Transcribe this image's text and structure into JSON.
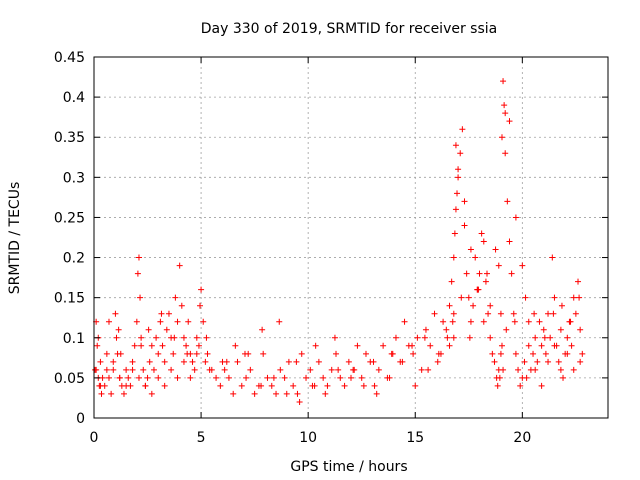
{
  "chart_data": {
    "type": "scatter",
    "title": "Day 330 of 2019, SRMTID for receiver ssia",
    "xlabel": "GPS time / hours",
    "ylabel": "SRMTID / TECUs",
    "xlim": [
      0,
      24
    ],
    "ylim": [
      0,
      0.45
    ],
    "xticks": [
      0,
      5,
      10,
      15,
      20
    ],
    "yticks": [
      0,
      0.05,
      0.1,
      0.15,
      0.2,
      0.25,
      0.3,
      0.35,
      0.4,
      0.45
    ],
    "xtick_labels": [
      "0",
      "5",
      "10",
      "15",
      "20"
    ],
    "ytick_labels": [
      "0",
      "0.05",
      "0.1",
      "0.15",
      "0.2",
      "0.25",
      "0.3",
      "0.35",
      "0.4",
      "0.45"
    ],
    "grid": true,
    "marker": "+",
    "color": "#ff0000",
    "series": [
      {
        "name": "SRMTID",
        "x": [
          0.05,
          0.1,
          0.15,
          0.2,
          0.25,
          0.3,
          0.35,
          0.4,
          0.5,
          0.6,
          0.7,
          0.8,
          0.9,
          1.0,
          1.05,
          1.1,
          1.15,
          1.2,
          1.3,
          1.4,
          1.5,
          1.6,
          1.7,
          1.8,
          1.9,
          2.0,
          2.05,
          2.1,
          2.15,
          2.2,
          2.3,
          2.4,
          2.5,
          2.6,
          2.7,
          2.8,
          2.9,
          3.0,
          3.1,
          3.2,
          3.3,
          3.4,
          3.5,
          3.6,
          3.7,
          3.8,
          3.9,
          4.0,
          4.1,
          4.2,
          4.3,
          4.4,
          4.5,
          4.6,
          4.7,
          4.8,
          4.9,
          5.0,
          5.1,
          5.2,
          5.3,
          5.5,
          5.7,
          5.9,
          6.1,
          6.3,
          6.5,
          6.7,
          6.9,
          7.1,
          7.3,
          7.5,
          7.7,
          7.9,
          8.1,
          8.3,
          8.5,
          8.7,
          8.9,
          9.1,
          9.3,
          9.5,
          9.7,
          9.9,
          10.1,
          10.3,
          10.5,
          10.7,
          10.9,
          11.1,
          11.3,
          11.5,
          11.7,
          11.9,
          12.1,
          12.3,
          12.5,
          12.7,
          12.9,
          13.1,
          13.3,
          13.5,
          13.7,
          13.9,
          14.1,
          14.3,
          14.5,
          14.7,
          14.9,
          15.1,
          15.3,
          15.5,
          15.7,
          15.9,
          16.1,
          16.3,
          16.5,
          16.6,
          16.7,
          16.8,
          16.85,
          16.9,
          16.95,
          17.0,
          17.1,
          17.2,
          17.3,
          17.4,
          17.5,
          17.6,
          17.7,
          17.8,
          17.9,
          18.0,
          18.1,
          18.2,
          18.3,
          18.4,
          18.5,
          18.6,
          18.7,
          18.8,
          18.85,
          18.9,
          18.95,
          19.0,
          19.05,
          19.1,
          19.15,
          19.2,
          19.3,
          19.4,
          19.5,
          19.6,
          19.7,
          19.8,
          19.9,
          20.0,
          20.1,
          20.2,
          20.3,
          20.4,
          20.5,
          20.6,
          20.7,
          20.8,
          20.9,
          21.0,
          21.1,
          21.2,
          21.3,
          21.4,
          21.5,
          21.6,
          21.7,
          21.8,
          21.9,
          22.0,
          22.1,
          22.2,
          22.3,
          22.4,
          22.5,
          22.6,
          22.7,
          22.8,
          0.1,
          0.3,
          0.6,
          0.9,
          1.2,
          1.5,
          1.8,
          2.1,
          2.4,
          2.7,
          3.0,
          3.3,
          3.6,
          3.9,
          4.2,
          4.5,
          4.8,
          5.4,
          6.0,
          6.6,
          7.2,
          7.8,
          8.4,
          9.0,
          9.6,
          10.2,
          10.8,
          11.4,
          12.0,
          12.6,
          13.2,
          13.8,
          14.4,
          15.0,
          15.6,
          16.2,
          16.6,
          16.75,
          16.8,
          16.9,
          17.0,
          17.3,
          17.6,
          17.9,
          18.2,
          18.5,
          18.9,
          19.0,
          19.05,
          19.1,
          19.2,
          19.4,
          19.7,
          20.0,
          20.3,
          20.6,
          20.9,
          21.2,
          21.5,
          21.8,
          22.1,
          22.4,
          22.7,
          0.2,
          0.7,
          1.25,
          2.2,
          2.55,
          3.15,
          3.75,
          4.35,
          4.95,
          5.25,
          6.2,
          7.05,
          7.85,
          8.65,
          9.45,
          10.35,
          11.25,
          12.15,
          13.05,
          13.95,
          14.85,
          15.45,
          16.05,
          16.45,
          16.8,
          17.15,
          17.55,
          17.95,
          18.35,
          18.75,
          19.25,
          19.65,
          20.15,
          20.55,
          21.05,
          21.45,
          21.85,
          22.25,
          22.65
        ],
        "y": [
          0.06,
          0.12,
          0.09,
          0.05,
          0.04,
          0.07,
          0.03,
          0.05,
          0.04,
          0.06,
          0.05,
          0.03,
          0.07,
          0.13,
          0.1,
          0.08,
          0.11,
          0.05,
          0.04,
          0.03,
          0.06,
          0.05,
          0.04,
          0.07,
          0.09,
          0.12,
          0.18,
          0.2,
          0.15,
          0.1,
          0.06,
          0.04,
          0.05,
          0.07,
          0.09,
          0.06,
          0.1,
          0.08,
          0.12,
          0.09,
          0.07,
          0.11,
          0.13,
          0.1,
          0.08,
          0.15,
          0.12,
          0.19,
          0.14,
          0.1,
          0.09,
          0.12,
          0.08,
          0.07,
          0.06,
          0.1,
          0.09,
          0.16,
          0.12,
          0.07,
          0.08,
          0.06,
          0.05,
          0.04,
          0.06,
          0.05,
          0.03,
          0.07,
          0.04,
          0.05,
          0.06,
          0.03,
          0.04,
          0.08,
          0.05,
          0.04,
          0.03,
          0.06,
          0.05,
          0.07,
          0.04,
          0.03,
          0.08,
          0.05,
          0.06,
          0.04,
          0.07,
          0.05,
          0.04,
          0.06,
          0.08,
          0.05,
          0.04,
          0.07,
          0.06,
          0.09,
          0.05,
          0.08,
          0.07,
          0.04,
          0.06,
          0.09,
          0.05,
          0.08,
          0.1,
          0.07,
          0.12,
          0.09,
          0.08,
          0.1,
          0.06,
          0.11,
          0.09,
          0.13,
          0.08,
          0.12,
          0.1,
          0.14,
          0.17,
          0.2,
          0.23,
          0.26,
          0.28,
          0.3,
          0.33,
          0.36,
          0.24,
          0.18,
          0.15,
          0.12,
          0.14,
          0.2,
          0.16,
          0.18,
          0.23,
          0.22,
          0.17,
          0.13,
          0.1,
          0.08,
          0.07,
          0.05,
          0.04,
          0.06,
          0.05,
          0.08,
          0.35,
          0.42,
          0.39,
          0.33,
          0.27,
          0.22,
          0.18,
          0.13,
          0.08,
          0.06,
          0.04,
          0.05,
          0.07,
          0.05,
          0.09,
          0.06,
          0.08,
          0.1,
          0.07,
          0.12,
          0.09,
          0.11,
          0.08,
          0.13,
          0.1,
          0.2,
          0.15,
          0.09,
          0.07,
          0.06,
          0.05,
          0.08,
          0.1,
          0.12,
          0.09,
          0.15,
          0.13,
          0.17,
          0.11,
          0.08,
          0.06,
          0.04,
          0.08,
          0.06,
          0.05,
          0.04,
          0.06,
          0.05,
          0.04,
          0.03,
          0.05,
          0.04,
          0.06,
          0.05,
          0.07,
          0.05,
          0.08,
          0.06,
          0.07,
          0.09,
          0.08,
          0.04,
          0.05,
          0.03,
          0.02,
          0.04,
          0.03,
          0.06,
          0.05,
          0.04,
          0.03,
          0.05,
          0.07,
          0.04,
          0.06,
          0.08,
          0.09,
          0.12,
          0.1,
          0.34,
          0.31,
          0.27,
          0.21,
          0.16,
          0.12,
          0.14,
          0.19,
          0.13,
          0.09,
          0.06,
          0.38,
          0.37,
          0.25,
          0.19,
          0.12,
          0.06,
          0.04,
          0.07,
          0.09,
          0.11,
          0.08,
          0.06,
          0.07,
          0.1,
          0.12,
          0.08,
          0.09,
          0.11,
          0.13,
          0.1,
          0.08,
          0.14,
          0.1,
          0.07,
          0.08,
          0.11,
          0.12,
          0.07,
          0.09,
          0.1,
          0.06,
          0.07,
          0.08,
          0.09,
          0.1,
          0.07,
          0.11,
          0.13,
          0.15,
          0.1,
          0.16,
          0.18,
          0.21,
          0.11,
          0.12,
          0.15,
          0.13,
          0.1,
          0.13,
          0.14,
          0.12,
          0.15
        ]
      }
    ]
  }
}
